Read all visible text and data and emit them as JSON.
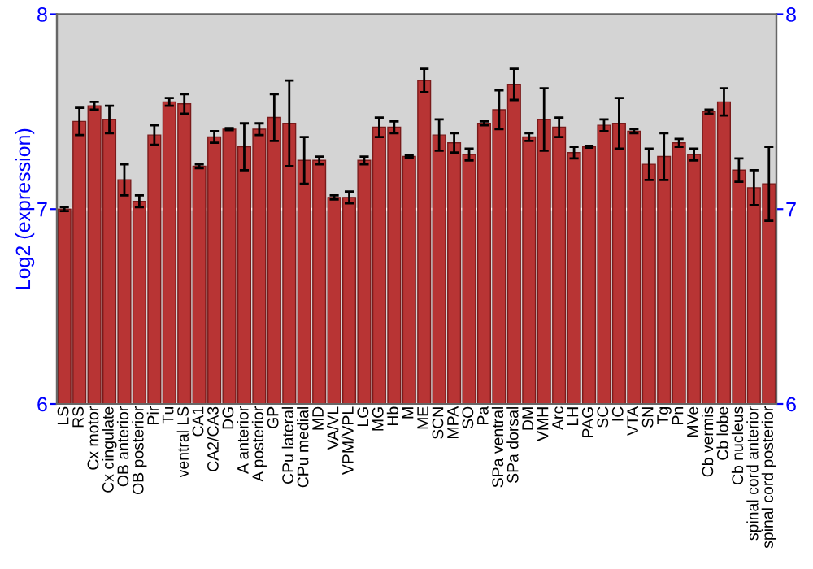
{
  "chart_data": {
    "type": "bar",
    "ylabel": "Log2 (expression)",
    "categories": [
      "LS",
      "RS",
      "Cx motor",
      "Cx cingulate",
      "OB anterior",
      "OB posterior",
      "Pir",
      "Tu",
      "ventral LS",
      "CA1",
      "CA2/CA3",
      "DG",
      "A anterior",
      "A posterior",
      "GP",
      "CPu lateral",
      "CPu medial",
      "MD",
      "VA/VL",
      "VPM/VPL",
      "LG",
      "MG",
      "Hb",
      "M",
      "ME",
      "SCN",
      "MPA",
      "SO",
      "Pa",
      "SPa ventral",
      "SPa dorsal",
      "DM",
      "VMH",
      "Arc",
      "LH",
      "PAG",
      "SC",
      "IC",
      "VTA",
      "SN",
      "Tg",
      "Pn",
      "MVe",
      "Cb vermis",
      "Cb lobe",
      "Cb nucleus",
      "spinal cord anterior",
      "spinal cord posterior"
    ],
    "values": [
      7.0,
      7.45,
      7.53,
      7.46,
      7.15,
      7.04,
      7.38,
      7.55,
      7.54,
      7.22,
      7.37,
      7.41,
      7.32,
      7.41,
      7.47,
      7.44,
      7.25,
      7.25,
      7.06,
      7.06,
      7.25,
      7.42,
      7.42,
      7.27,
      7.66,
      7.38,
      7.34,
      7.28,
      7.44,
      7.51,
      7.64,
      7.37,
      7.46,
      7.42,
      7.29,
      7.32,
      7.43,
      7.44,
      7.4,
      7.23,
      7.27,
      7.34,
      7.28,
      7.5,
      7.55,
      7.2,
      7.11,
      7.13
    ],
    "errors": [
      0.01,
      0.07,
      0.02,
      0.07,
      0.08,
      0.03,
      0.05,
      0.02,
      0.05,
      0.01,
      0.03,
      0.005,
      0.12,
      0.03,
      0.12,
      0.22,
      0.12,
      0.02,
      0.01,
      0.03,
      0.02,
      0.05,
      0.03,
      0.005,
      0.06,
      0.08,
      0.05,
      0.03,
      0.01,
      0.1,
      0.08,
      0.02,
      0.16,
      0.05,
      0.03,
      0.005,
      0.03,
      0.13,
      0.01,
      0.08,
      0.12,
      0.02,
      0.03,
      0.01,
      0.07,
      0.06,
      0.09,
      0.19
    ],
    "color": "#b83434",
    "ylim": [
      6,
      8
    ],
    "yticks": [
      6,
      7,
      8
    ],
    "y2lim": [
      6,
      8
    ],
    "y2ticks": [
      6,
      7,
      8
    ],
    "grid": "y"
  }
}
